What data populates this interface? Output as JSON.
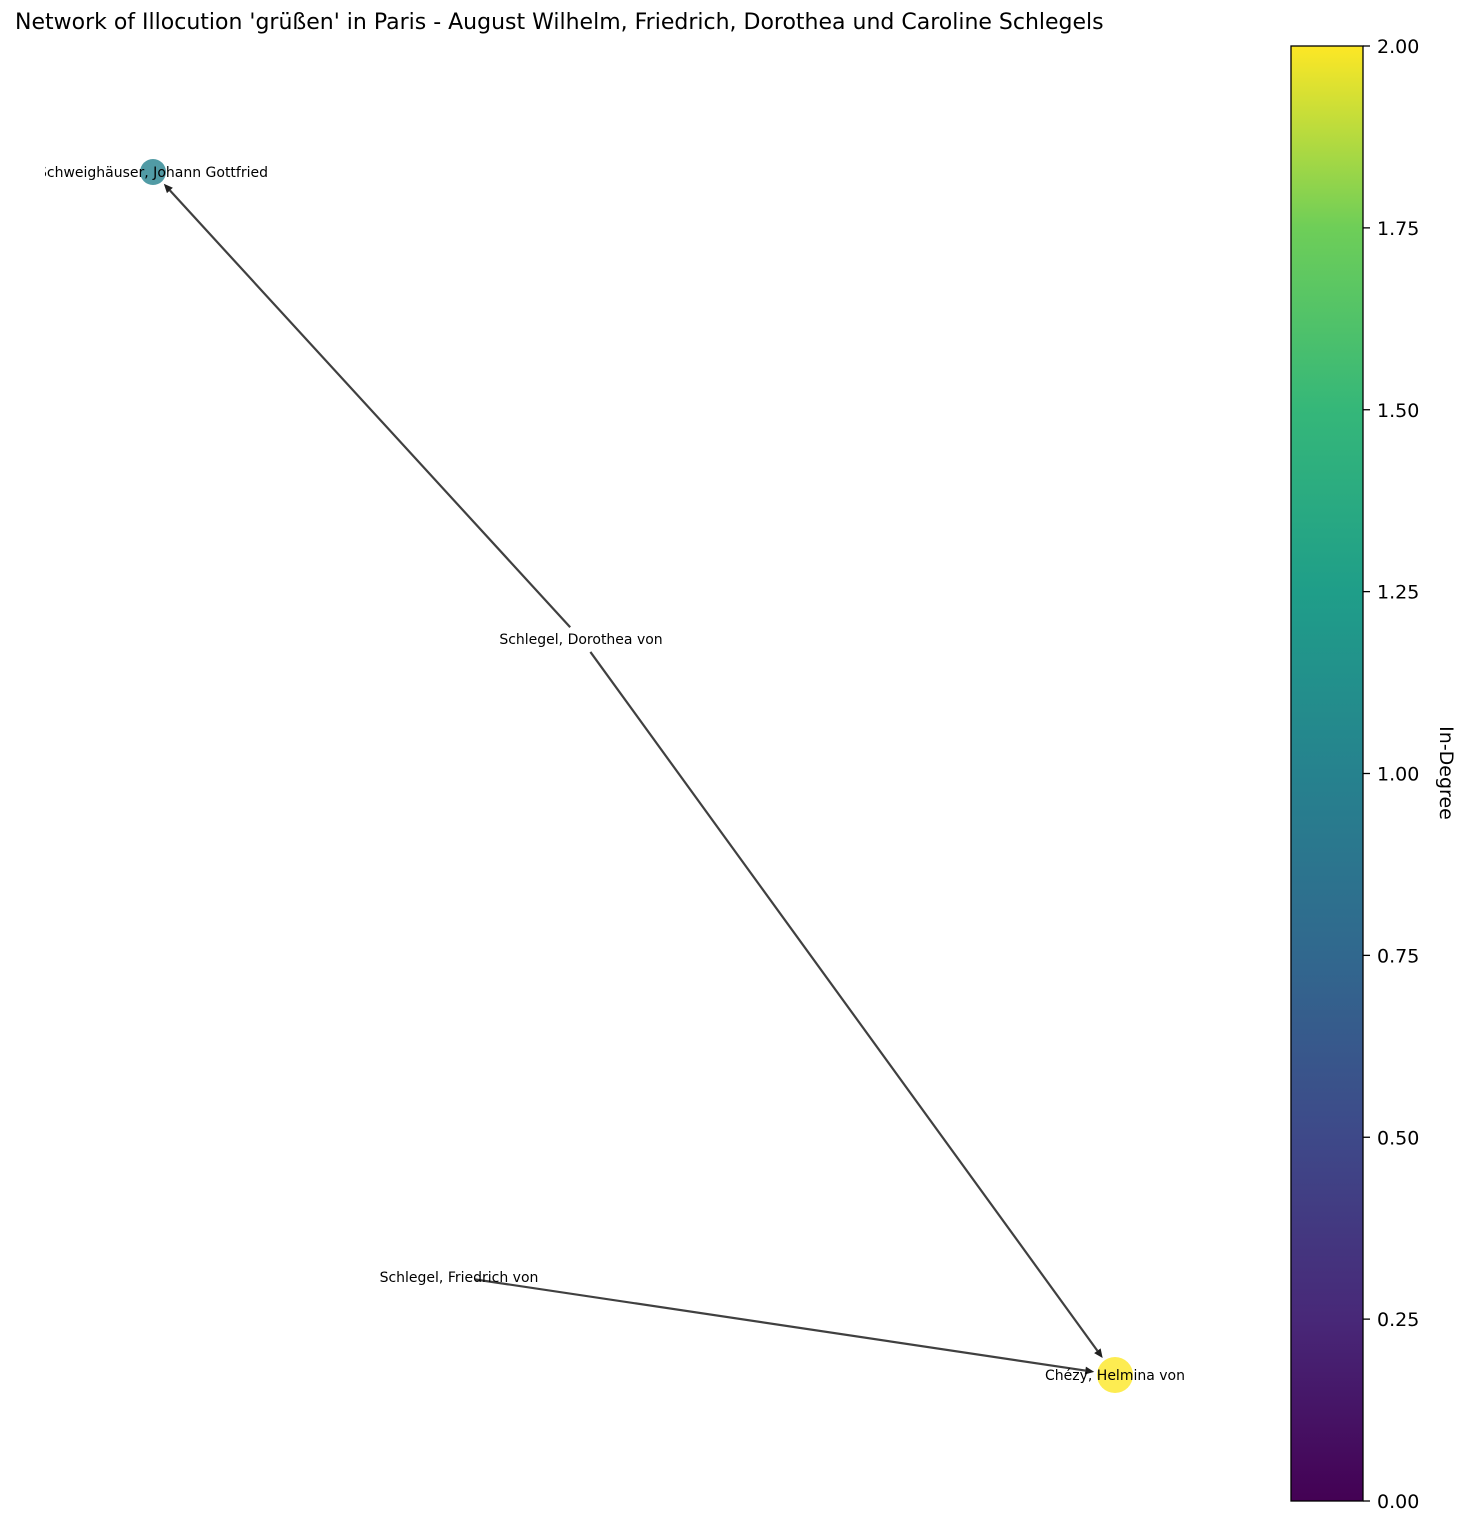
{
  "title": "Network of Illocution 'grüßen' in Paris - August Wilhelm, Friedrich, Dorothea und Caroline Schlegels",
  "nodes": [
    {
      "id": "schweighaeuser",
      "label": "Schweighäuser, Johann Gottfried",
      "in_degree": 1
    },
    {
      "id": "dorothea",
      "label": "Schlegel, Dorothea von",
      "in_degree": 0
    },
    {
      "id": "friedrich",
      "label": "Schlegel, Friedrich von",
      "in_degree": 0
    },
    {
      "id": "chezy",
      "label": "Chézy, Helmina von",
      "in_degree": 2
    }
  ],
  "edges": [
    {
      "source": "dorothea",
      "target": "schweighaeuser"
    },
    {
      "source": "dorothea",
      "target": "chezy"
    },
    {
      "source": "friedrich",
      "target": "chezy"
    }
  ],
  "colorbar": {
    "label": "In-Degree",
    "colormap": "viridis",
    "min": 0,
    "max": 2,
    "ticks": [
      "0.00",
      "0.25",
      "0.50",
      "0.75",
      "1.00",
      "1.25",
      "1.50",
      "1.75",
      "2.00"
    ]
  },
  "colors": {
    "edge": "#404040",
    "text": "#000000"
  }
}
